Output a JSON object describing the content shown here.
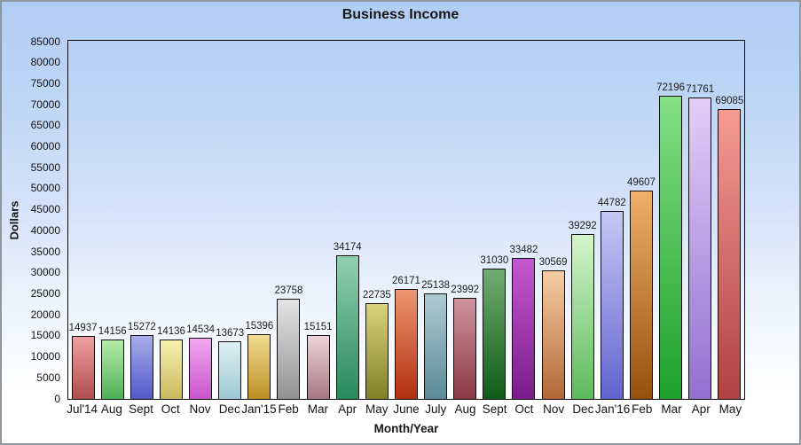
{
  "chart_data": {
    "type": "bar",
    "title": "Business Income",
    "xlabel": "Month/Year",
    "ylabel": "Dollars",
    "ylim": [
      0,
      85000
    ],
    "ytick_step": 5000,
    "grid": false,
    "legend": "none",
    "value_labels_shown": true,
    "background_gradient": [
      "#b2cdf4",
      "#ffffff"
    ],
    "plot_border_color": "#0a0a0a",
    "text_color": "#1b1b1b",
    "categories": [
      "Jul'14",
      "Aug",
      "Sept",
      "Oct",
      "Nov",
      "Dec",
      "Jan'15",
      "Feb",
      "Mar",
      "Apr",
      "May",
      "June",
      "July",
      "Aug",
      "Sept",
      "Oct",
      "Nov",
      "Dec",
      "Jan'16",
      "Feb",
      "Mar",
      "Apr",
      "May"
    ],
    "values": [
      14937,
      14156,
      15272,
      14136,
      14534,
      13673,
      15396,
      23758,
      15151,
      34174,
      22735,
      26171,
      25138,
      23992,
      31030,
      33482,
      30569,
      39292,
      44782,
      49607,
      72196,
      71761,
      69085
    ],
    "bar_gradients": [
      {
        "top": "#efa0a0",
        "bottom": "#b04c4c"
      },
      {
        "top": "#b5ecab",
        "bottom": "#50b054"
      },
      {
        "top": "#a8aeea",
        "bottom": "#5157c8"
      },
      {
        "top": "#f6f1ad",
        "bottom": "#c9ba60"
      },
      {
        "top": "#f3a8ef",
        "bottom": "#ca54ce"
      },
      {
        "top": "#def0f2",
        "bottom": "#9dc8d2"
      },
      {
        "top": "#f1dc92",
        "bottom": "#bd8f24"
      },
      {
        "top": "#e4e4e4",
        "bottom": "#929292"
      },
      {
        "top": "#eed3d8",
        "bottom": "#a67884"
      },
      {
        "top": "#92cfb2",
        "bottom": "#28885c"
      },
      {
        "top": "#dad37a",
        "bottom": "#808024"
      },
      {
        "top": "#ee9672",
        "bottom": "#b12f0e"
      },
      {
        "top": "#aecbd2",
        "bottom": "#5b8a96"
      },
      {
        "top": "#d0949c",
        "bottom": "#8a3844"
      },
      {
        "top": "#72ac72",
        "bottom": "#0e5c18"
      },
      {
        "top": "#c558cc",
        "bottom": "#7a1c8c"
      },
      {
        "top": "#f8cda4",
        "bottom": "#b26836"
      },
      {
        "top": "#d4f5ca",
        "bottom": "#5cba5c"
      },
      {
        "top": "#c7c7f5",
        "bottom": "#6164cf"
      },
      {
        "top": "#eeb06a",
        "bottom": "#96500e"
      },
      {
        "top": "#85df85",
        "bottom": "#1da02c"
      },
      {
        "top": "#e3cef8",
        "bottom": "#9270d0"
      },
      {
        "top": "#f69b94",
        "bottom": "#ae4242"
      }
    ]
  }
}
